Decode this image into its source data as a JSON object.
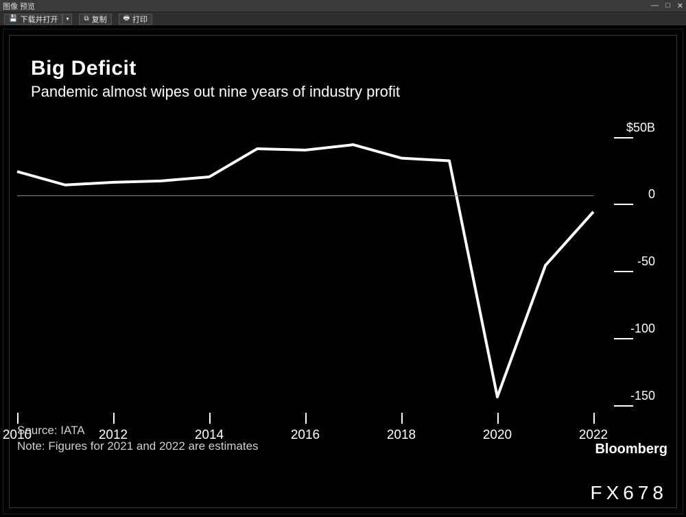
{
  "window": {
    "title": "图像 预览",
    "toolbar": {
      "download_open": "下载并打开",
      "copy": "复制",
      "print": "打印"
    }
  },
  "chart": {
    "type": "line",
    "title": "Big Deficit",
    "subtitle": "Pandemic almost wipes out nine years of industry profit",
    "source": "Source: IATA",
    "note": "Note: Figures for 2021 and 2022 are estimates",
    "brand": "Bloomberg",
    "watermark": "FX678",
    "background_color": "#000000",
    "text_color": "#ffffff",
    "axis_color": "#ffffff",
    "grid_color": "#888888",
    "line_color": "#ffffff",
    "line_width": 4,
    "title_fontsize": 30,
    "subtitle_fontsize": 22,
    "label_fontsize": 18,
    "x": {
      "min": 2010,
      "max": 2022,
      "ticks": [
        2010,
        2012,
        2014,
        2016,
        2018,
        2020,
        2022
      ]
    },
    "y": {
      "min": -170,
      "max": 60,
      "ticks": [
        {
          "v": 50,
          "label": "$50B"
        },
        {
          "v": 0,
          "label": "0"
        },
        {
          "v": -50,
          "label": "-50"
        },
        {
          "v": -100,
          "label": "-100"
        },
        {
          "v": -150,
          "label": "-150"
        }
      ],
      "tick_line_width": 28
    },
    "series": [
      {
        "name": "industry_profit",
        "color": "#ffffff",
        "points": [
          {
            "x": 2010,
            "y": 18
          },
          {
            "x": 2011,
            "y": 8
          },
          {
            "x": 2012,
            "y": 10
          },
          {
            "x": 2013,
            "y": 11
          },
          {
            "x": 2014,
            "y": 14
          },
          {
            "x": 2015,
            "y": 35
          },
          {
            "x": 2016,
            "y": 34
          },
          {
            "x": 2017,
            "y": 38
          },
          {
            "x": 2018,
            "y": 28
          },
          {
            "x": 2019,
            "y": 26
          },
          {
            "x": 2020,
            "y": -150
          },
          {
            "x": 2021,
            "y": -52
          },
          {
            "x": 2022,
            "y": -12
          }
        ]
      }
    ]
  }
}
